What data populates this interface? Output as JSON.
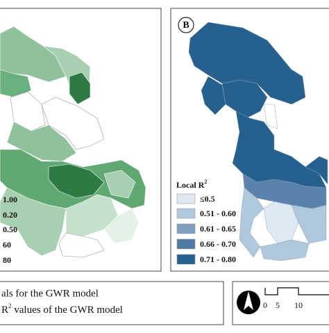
{
  "left_panel": {
    "legend_labels": [
      "1.00",
      "0.20",
      "0.50",
      "60",
      "80"
    ]
  },
  "right_panel": {
    "panel_label": "B",
    "legend_title": {
      "text": "Local R",
      "superscript": "2"
    },
    "legend_labels": [
      "≤0.5",
      "0.51 - 0.60",
      "0.61 - 0.65",
      "0.66 - 0.70",
      "0.71 - 0.80"
    ]
  },
  "caption": {
    "line1": "als for the GWR model",
    "line2": {
      "text_before": "R",
      "superscript": "2",
      "text_after": " values of the GWR model"
    }
  },
  "scale_bar": {
    "labels": [
      "0",
      "5",
      "10"
    ]
  }
}
